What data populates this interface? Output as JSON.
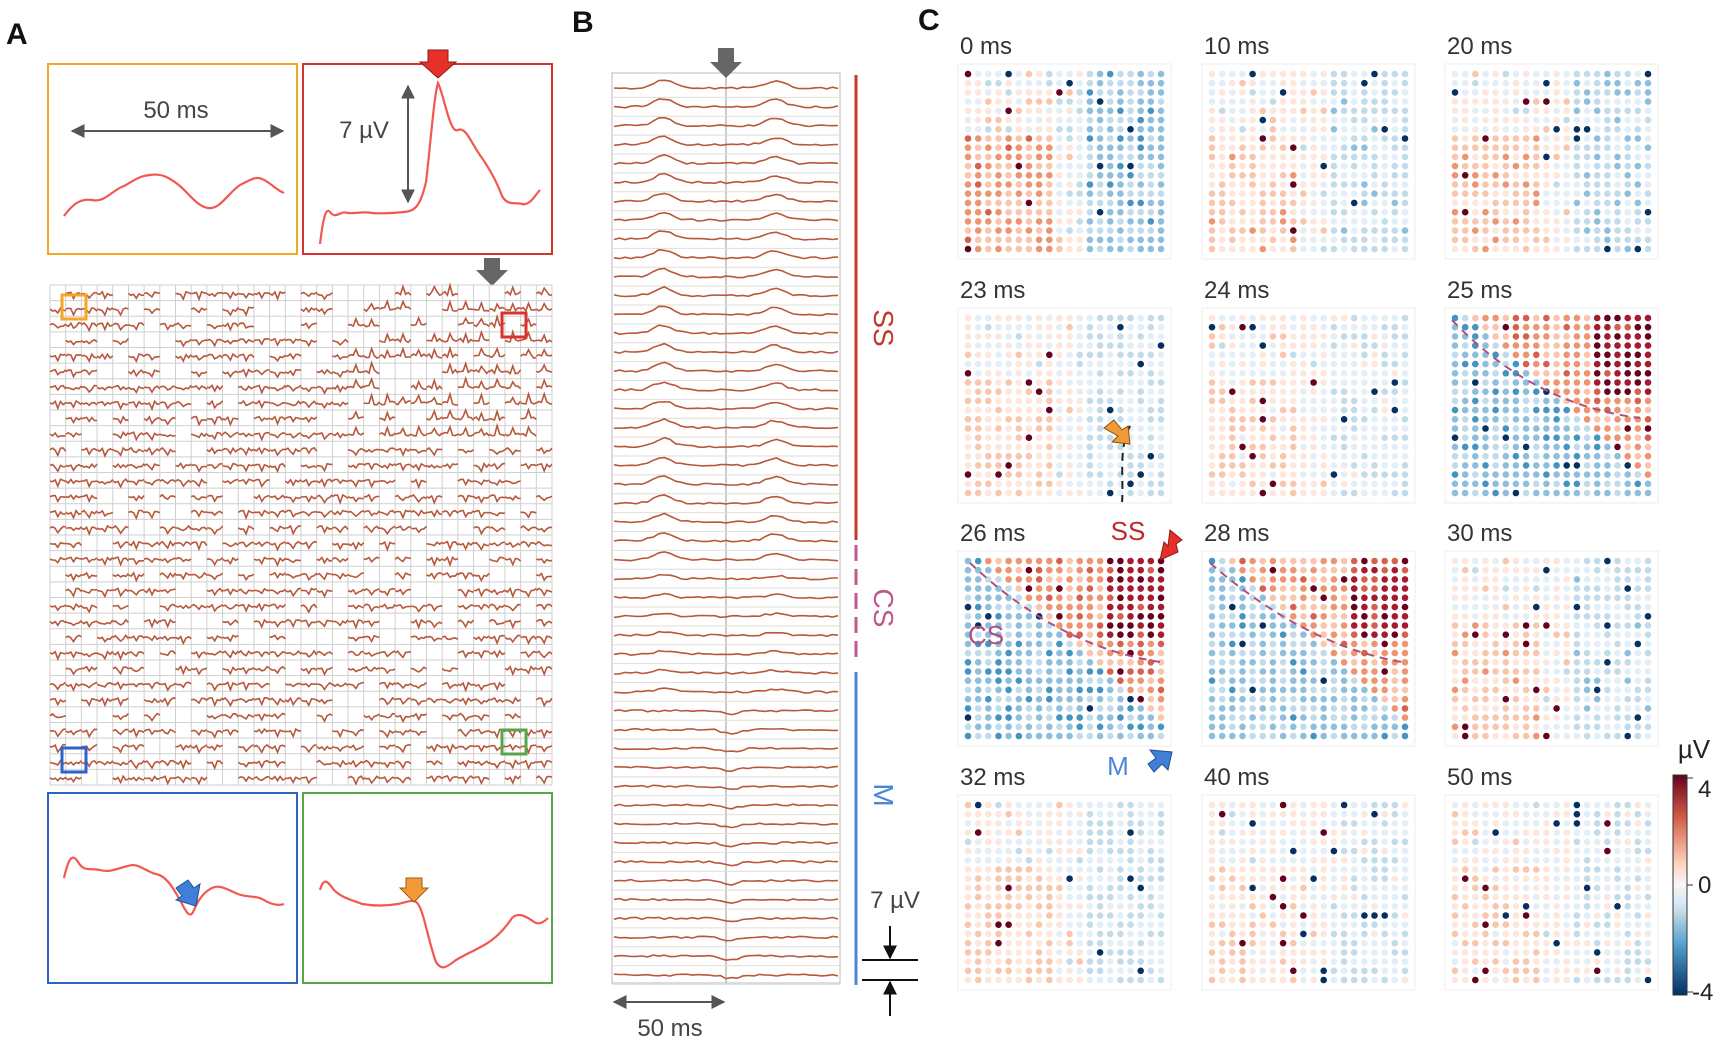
{
  "figure": {
    "panels": {
      "A": {
        "letter": "A"
      },
      "B": {
        "letter": "B"
      },
      "C": {
        "letter": "C"
      }
    },
    "panelA": {
      "scale_time": "50 ms",
      "scale_voltage": "7 µV",
      "inset_colors": {
        "orange": "#f5a623",
        "red": "#d9312b",
        "blue": "#2d63c9",
        "green": "#5aa449"
      },
      "arrow_colors": {
        "red": "#e8302a",
        "gray": "#555555",
        "blue": "#3f7fd6",
        "orange": "#f39a38"
      }
    },
    "panelB": {
      "scale_time": "50 ms",
      "scale_voltage": "7 µV",
      "segments": [
        {
          "label": "SS",
          "color": "#c0392b"
        },
        {
          "label": "CS",
          "color": "#c0588a"
        },
        {
          "label": "M",
          "color": "#4a86d8"
        }
      ]
    },
    "panelC": {
      "times": [
        "0 ms",
        "10 ms",
        "20 ms",
        "23 ms",
        "24 ms",
        "25 ms",
        "26 ms",
        "28 ms",
        "30 ms",
        "32 ms",
        "40 ms",
        "50 ms"
      ],
      "annotations": {
        "ss": "SS",
        "cs": "CS",
        "m": "M"
      },
      "colorbar": {
        "unit": "µV",
        "max_label": "4",
        "mid_label": "0",
        "min_label": "-4",
        "max_color": "#67001f",
        "mid_color": "#f7f7f7",
        "min_color": "#053061"
      }
    }
  }
}
